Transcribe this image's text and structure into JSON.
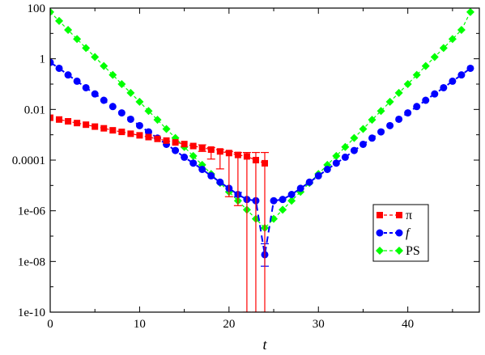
{
  "chart_data": {
    "type": "scatter",
    "title": "",
    "xlabel": "t",
    "ylabel": "",
    "xlim": [
      0,
      48
    ],
    "ylim": [
      1e-10,
      100
    ],
    "yscale": "log",
    "grid": false,
    "legend_position": "right",
    "x_ticks": [
      "0",
      "10",
      "20",
      "30",
      "40"
    ],
    "y_ticks": [
      "1e-10",
      "1e-08",
      "1e-06",
      "0.0001",
      "0.01",
      "1",
      "100"
    ],
    "colors": {
      "pi": "#ff0000",
      "f": "#0000ff",
      "ps": "#00ff00"
    },
    "series": [
      {
        "name": "π",
        "key": "pi",
        "marker": "square",
        "points": [
          {
            "x": 0,
            "y": 0.0047
          },
          {
            "x": 1,
            "y": 0.004
          },
          {
            "x": 2,
            "y": 0.0034
          },
          {
            "x": 3,
            "y": 0.0029
          },
          {
            "x": 4,
            "y": 0.0025
          },
          {
            "x": 5,
            "y": 0.0021
          },
          {
            "x": 6,
            "y": 0.0018
          },
          {
            "x": 7,
            "y": 0.0015
          },
          {
            "x": 8,
            "y": 0.0013
          },
          {
            "x": 9,
            "y": 0.0011
          },
          {
            "x": 10,
            "y": 0.00095
          },
          {
            "x": 11,
            "y": 0.00081
          },
          {
            "x": 12,
            "y": 0.00069
          },
          {
            "x": 13,
            "y": 0.00059
          },
          {
            "x": 14,
            "y": 0.0005
          },
          {
            "x": 15,
            "y": 0.00043
          },
          {
            "x": 16,
            "y": 0.00036
          },
          {
            "x": 17,
            "y": 0.00031
          },
          {
            "x": 18,
            "y": 0.00026
          },
          {
            "x": 19,
            "y": 0.00022
          },
          {
            "x": 20,
            "y": 0.00019
          },
          {
            "x": 21,
            "y": 0.00016
          },
          {
            "x": 22,
            "y": 0.00014,
            "err_lo": 1e-10,
            "err_hi": 0.0002
          },
          {
            "x": 23,
            "y": 0.0001,
            "err_lo": 1e-10,
            "err_hi": 0.0002
          },
          {
            "x": 24,
            "y": 7.5e-05,
            "err_lo": 1e-10,
            "err_hi": 0.0002
          }
        ],
        "errors": [
          {
            "x": 17,
            "lo": 0.00022,
            "hi": 0.0004
          },
          {
            "x": 18,
            "lo": 0.00011,
            "hi": 0.00031
          },
          {
            "x": 19,
            "lo": 4.5e-05,
            "hi": 0.00026
          },
          {
            "x": 20,
            "lo": 3.6e-06,
            "hi": 0.00022
          },
          {
            "x": 21,
            "lo": 1.6e-06,
            "hi": 0.0002
          }
        ]
      },
      {
        "name": "f",
        "key": "f",
        "marker": "circle",
        "points": [
          {
            "x": 0,
            "y": 0.72
          },
          {
            "x": 1,
            "y": 0.42
          },
          {
            "x": 2,
            "y": 0.23
          },
          {
            "x": 3,
            "y": 0.13
          },
          {
            "x": 4,
            "y": 0.072
          },
          {
            "x": 5,
            "y": 0.041
          },
          {
            "x": 6,
            "y": 0.023
          },
          {
            "x": 7,
            "y": 0.013
          },
          {
            "x": 8,
            "y": 0.0073
          },
          {
            "x": 9,
            "y": 0.0041
          },
          {
            "x": 10,
            "y": 0.0023
          },
          {
            "x": 11,
            "y": 0.0013
          },
          {
            "x": 12,
            "y": 0.00074
          },
          {
            "x": 13,
            "y": 0.00042
          },
          {
            "x": 14,
            "y": 0.00024
          },
          {
            "x": 15,
            "y": 0.00013
          },
          {
            "x": 16,
            "y": 7.6e-05
          },
          {
            "x": 17,
            "y": 4.3e-05
          },
          {
            "x": 18,
            "y": 2.4e-05
          },
          {
            "x": 19,
            "y": 1.35e-05
          },
          {
            "x": 20,
            "y": 7.7e-06
          },
          {
            "x": 21,
            "y": 4.4e-06
          },
          {
            "x": 22,
            "y": 2.8e-06
          },
          {
            "x": 23,
            "y": 2.5e-06
          },
          {
            "x": 24,
            "y": 1.85e-08,
            "err_lo": 6.5e-09,
            "err_hi": 5e-08
          },
          {
            "x": 25,
            "y": 2.5e-06
          },
          {
            "x": 26,
            "y": 2.8e-06
          },
          {
            "x": 27,
            "y": 4.4e-06
          },
          {
            "x": 28,
            "y": 7.7e-06
          },
          {
            "x": 29,
            "y": 1.35e-05
          },
          {
            "x": 30,
            "y": 2.4e-05
          },
          {
            "x": 31,
            "y": 4.3e-05
          },
          {
            "x": 32,
            "y": 7.6e-05
          },
          {
            "x": 33,
            "y": 0.00013
          },
          {
            "x": 34,
            "y": 0.00024
          },
          {
            "x": 35,
            "y": 0.00042
          },
          {
            "x": 36,
            "y": 0.00074
          },
          {
            "x": 37,
            "y": 0.0013
          },
          {
            "x": 38,
            "y": 0.0023
          },
          {
            "x": 39,
            "y": 0.0041
          },
          {
            "x": 40,
            "y": 0.0073
          },
          {
            "x": 41,
            "y": 0.013
          },
          {
            "x": 42,
            "y": 0.023
          },
          {
            "x": 43,
            "y": 0.041
          },
          {
            "x": 44,
            "y": 0.072
          },
          {
            "x": 45,
            "y": 0.13
          },
          {
            "x": 46,
            "y": 0.23
          },
          {
            "x": 47,
            "y": 0.42
          }
        ],
        "errors": [
          {
            "x": 21,
            "lo": 3.6e-06,
            "hi": 5.3e-06
          }
        ]
      },
      {
        "name": "PS",
        "key": "ps",
        "marker": "diamond",
        "points": [
          {
            "x": 0,
            "y": 70
          },
          {
            "x": 1,
            "y": 31
          },
          {
            "x": 2,
            "y": 13.7
          },
          {
            "x": 3,
            "y": 6.0
          },
          {
            "x": 4,
            "y": 2.65
          },
          {
            "x": 5,
            "y": 1.17
          },
          {
            "x": 6,
            "y": 0.52
          },
          {
            "x": 7,
            "y": 0.23
          },
          {
            "x": 8,
            "y": 0.1
          },
          {
            "x": 9,
            "y": 0.045
          },
          {
            "x": 10,
            "y": 0.02
          },
          {
            "x": 11,
            "y": 0.0087
          },
          {
            "x": 12,
            "y": 0.0039
          },
          {
            "x": 13,
            "y": 0.0017
          },
          {
            "x": 14,
            "y": 0.00075
          },
          {
            "x": 15,
            "y": 0.00033
          },
          {
            "x": 16,
            "y": 0.000146
          },
          {
            "x": 17,
            "y": 6.5e-05
          },
          {
            "x": 18,
            "y": 2.85e-05
          },
          {
            "x": 19,
            "y": 1.26e-05
          },
          {
            "x": 20,
            "y": 5.6e-06
          },
          {
            "x": 21,
            "y": 2.5e-06
          },
          {
            "x": 22,
            "y": 1.1e-06
          },
          {
            "x": 23,
            "y": 4.8e-07
          },
          {
            "x": 24,
            "y": 2.1e-07
          },
          {
            "x": 25,
            "y": 4.8e-07
          },
          {
            "x": 26,
            "y": 1.1e-06
          },
          {
            "x": 27,
            "y": 2.5e-06
          },
          {
            "x": 28,
            "y": 5.6e-06
          },
          {
            "x": 29,
            "y": 1.26e-05
          },
          {
            "x": 30,
            "y": 2.85e-05
          },
          {
            "x": 31,
            "y": 6.5e-05
          },
          {
            "x": 32,
            "y": 0.000146
          },
          {
            "x": 33,
            "y": 0.00033
          },
          {
            "x": 34,
            "y": 0.00075
          },
          {
            "x": 35,
            "y": 0.0017
          },
          {
            "x": 36,
            "y": 0.0039
          },
          {
            "x": 37,
            "y": 0.0087
          },
          {
            "x": 38,
            "y": 0.02
          },
          {
            "x": 39,
            "y": 0.045
          },
          {
            "x": 40,
            "y": 0.1
          },
          {
            "x": 41,
            "y": 0.23
          },
          {
            "x": 42,
            "y": 0.52
          },
          {
            "x": 43,
            "y": 1.17
          },
          {
            "x": 44,
            "y": 2.65
          },
          {
            "x": 45,
            "y": 6.0
          },
          {
            "x": 46,
            "y": 13.7
          },
          {
            "x": 47,
            "y": 70
          }
        ]
      }
    ]
  }
}
